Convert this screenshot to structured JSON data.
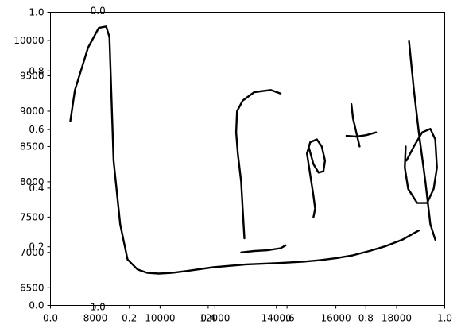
{
  "chart_data": {
    "type": "line",
    "title": "",
    "xlabel": "",
    "ylabel": "",
    "grid": false,
    "legend": "none",
    "axes": {
      "overlay": {
        "xlim": [
          0.0,
          1.0
        ],
        "ylim": [
          0.0,
          1.0
        ],
        "x_ticks": [
          0.0,
          0.2,
          0.4,
          0.6,
          0.8,
          1.0
        ],
        "x_tick_labels": [
          "0.0",
          "0.2",
          "0.4",
          "0.6",
          "0.8",
          "1.0"
        ],
        "y_ticks": [
          0.0,
          0.2,
          0.4,
          0.6,
          0.8,
          1.0
        ],
        "y_tick_labels": [
          "0.0",
          "0.2",
          "0.4",
          "0.6",
          "0.8",
          "1.0"
        ]
      },
      "main": {
        "xlim": [
          0,
          18000
        ],
        "ylim": [
          6250,
          10400
        ],
        "y_ticks": [
          6500,
          7000,
          7500,
          8000,
          8500,
          9000,
          9500,
          10000
        ],
        "y_tick_labels": [
          "6500",
          "7000",
          "7500",
          "8000",
          "8500",
          "9000",
          "9500",
          "10000"
        ],
        "x_ticks": [
          8000,
          10000,
          12000,
          14000,
          16000,
          18000
        ],
        "x_tick_labels": [
          "8000",
          "10000",
          "12000",
          "14000",
          "16000",
          "18000"
        ],
        "x_tick_positions": [
          0.114,
          0.278,
          0.417,
          0.573,
          0.724,
          0.878
        ],
        "stray_labels": [
          {
            "text": "0.0",
            "x": 0.08,
            "y": 1.0
          },
          {
            "text": "1.0",
            "x": 0.08,
            "y": 0.0
          }
        ]
      }
    },
    "series": [
      {
        "strokes": [
          [
            [
              820,
              8860
            ],
            [
              1100,
              9300
            ],
            [
              1900,
              9900
            ],
            [
              2550,
              10180
            ],
            [
              3000,
              10200
            ],
            [
              3200,
              10050
            ],
            [
              3450,
              8300
            ],
            [
              3850,
              7400
            ],
            [
              4300,
              6900
            ],
            [
              4900,
              6760
            ],
            [
              5500,
              6710
            ],
            [
              6200,
              6700
            ],
            [
              7000,
              6710
            ],
            [
              8000,
              6740
            ],
            [
              9500,
              6790
            ],
            [
              11500,
              6830
            ],
            [
              13500,
              6850
            ],
            [
              15000,
              6870
            ],
            [
              16000,
              6890
            ],
            [
              17000,
              6920
            ],
            [
              18000,
              6960
            ],
            [
              19000,
              7020
            ],
            [
              20000,
              7090
            ],
            [
              21000,
              7180
            ],
            [
              22000,
              7310
            ]
          ],
          [
            [
              11200,
              7000
            ],
            [
              12000,
              7020
            ],
            [
              12800,
              7030
            ],
            [
              13600,
              7060
            ],
            [
              13900,
              7100
            ]
          ],
          [
            [
              11400,
              7200
            ],
            [
              11300,
              7600
            ],
            [
              11200,
              8000
            ],
            [
              11000,
              8400
            ],
            [
              10900,
              8700
            ],
            [
              10950,
              9000
            ],
            [
              11300,
              9150
            ],
            [
              12000,
              9270
            ],
            [
              13000,
              9300
            ],
            [
              13600,
              9250
            ]
          ],
          [
            [
              15200,
              8400
            ],
            [
              15400,
              8100
            ],
            [
              15600,
              7800
            ],
            [
              15700,
              7620
            ],
            [
              15600,
              7500
            ]
          ],
          [
            [
              15200,
              8400
            ],
            [
              15400,
              8560
            ],
            [
              15800,
              8600
            ],
            [
              16100,
              8500
            ],
            [
              16300,
              8300
            ],
            [
              16200,
              8150
            ],
            [
              15900,
              8130
            ],
            [
              15600,
              8250
            ],
            [
              15300,
              8500
            ]
          ],
          [
            [
              17900,
              9100
            ],
            [
              18000,
              8900
            ],
            [
              18300,
              8600
            ],
            [
              18400,
              8500
            ]
          ],
          [
            [
              17600,
              8650
            ],
            [
              18200,
              8640
            ],
            [
              18800,
              8660
            ],
            [
              19400,
              8700
            ]
          ],
          [
            [
              21400,
              10000
            ],
            [
              21700,
              9300
            ],
            [
              22000,
              8700
            ],
            [
              22400,
              8000
            ],
            [
              22700,
              7400
            ],
            [
              23000,
              7180
            ]
          ],
          [
            [
              21200,
              8500
            ],
            [
              21150,
              8200
            ],
            [
              21350,
              7900
            ],
            [
              21900,
              7700
            ],
            [
              22500,
              7700
            ],
            [
              22900,
              7900
            ],
            [
              23100,
              8200
            ],
            [
              23000,
              8600
            ],
            [
              22700,
              8750
            ],
            [
              22200,
              8700
            ],
            [
              21700,
              8500
            ],
            [
              21250,
              8300
            ]
          ]
        ]
      }
    ]
  }
}
